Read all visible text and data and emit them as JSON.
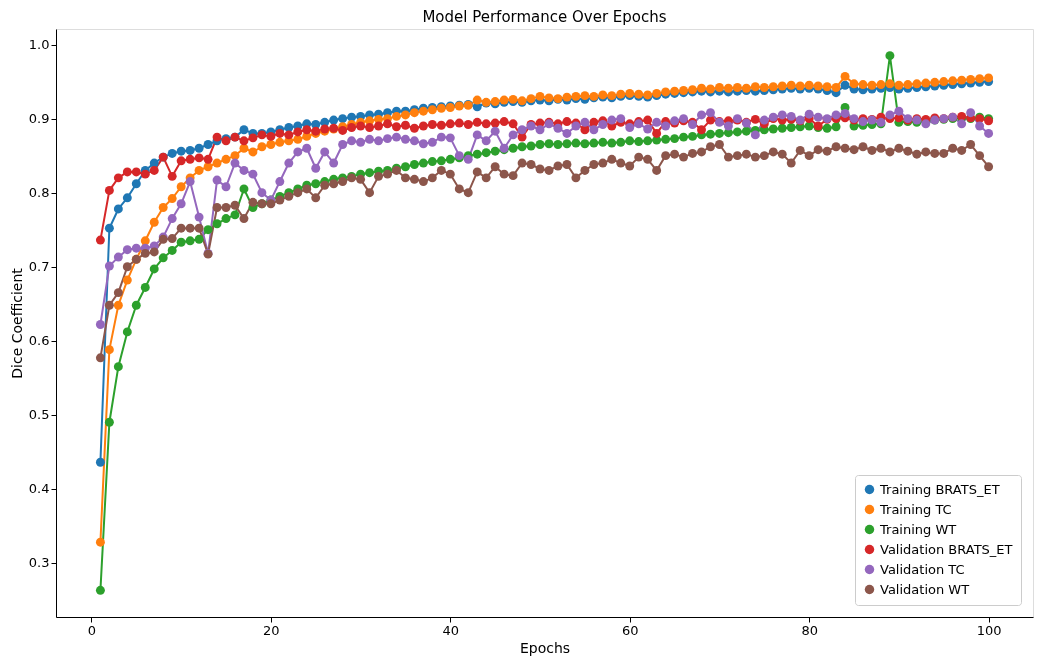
{
  "chart_data": {
    "type": "line",
    "title": "Model Performance Over Epochs",
    "xlabel": "Epochs",
    "ylabel": "Dice Coefficient",
    "x": [
      1,
      2,
      3,
      4,
      5,
      6,
      7,
      8,
      9,
      10,
      11,
      12,
      13,
      14,
      15,
      16,
      17,
      18,
      19,
      20,
      21,
      22,
      23,
      24,
      25,
      26,
      27,
      28,
      29,
      30,
      31,
      32,
      33,
      34,
      35,
      36,
      37,
      38,
      39,
      40,
      41,
      42,
      43,
      44,
      45,
      46,
      47,
      48,
      49,
      50,
      51,
      52,
      53,
      54,
      55,
      56,
      57,
      58,
      59,
      60,
      61,
      62,
      63,
      64,
      65,
      66,
      67,
      68,
      69,
      70,
      71,
      72,
      73,
      74,
      75,
      76,
      77,
      78,
      79,
      80,
      81,
      82,
      83,
      84,
      85,
      86,
      87,
      88,
      89,
      90,
      91,
      92,
      93,
      94,
      95,
      96,
      97,
      98,
      99,
      100
    ],
    "xlim": [
      -3.95,
      104.95
    ],
    "xticks": [
      0,
      20,
      40,
      60,
      80,
      100
    ],
    "ylim": [
      0.227,
      1.021
    ],
    "yticks": [
      0.3,
      0.4,
      0.5,
      0.6,
      0.7,
      0.8,
      0.9,
      {
        "value": 1.0,
        "label": "1.0"
      }
    ],
    "marker": "circle",
    "line_style": "solid",
    "legend": "bottom right",
    "grid": false,
    "series": [
      {
        "name": "Training BRATS_ET",
        "color": "#1f77b4",
        "values": [
          0.436,
          0.752,
          0.778,
          0.793,
          0.812,
          0.83,
          0.84,
          0.848,
          0.853,
          0.856,
          0.857,
          0.86,
          0.865,
          0.87,
          0.873,
          0.875,
          0.885,
          0.88,
          0.88,
          0.882,
          0.885,
          0.888,
          0.89,
          0.893,
          0.892,
          0.895,
          0.898,
          0.9,
          0.902,
          0.903,
          0.905,
          0.906,
          0.908,
          0.91,
          0.91,
          0.912,
          0.914,
          0.915,
          0.916,
          0.917,
          0.918,
          0.919,
          0.916,
          0.921,
          0.92,
          0.922,
          0.923,
          0.922,
          0.924,
          0.925,
          0.924,
          0.926,
          0.925,
          0.927,
          0.926,
          0.928,
          0.929,
          0.928,
          0.93,
          0.931,
          0.93,
          0.929,
          0.931,
          0.933,
          0.934,
          0.935,
          0.936,
          0.937,
          0.936,
          0.937,
          0.936,
          0.937,
          0.938,
          0.937,
          0.938,
          0.939,
          0.94,
          0.941,
          0.94,
          0.941,
          0.94,
          0.938,
          0.935,
          0.945,
          0.94,
          0.939,
          0.94,
          0.941,
          0.942,
          0.94,
          0.941,
          0.942,
          0.943,
          0.944,
          0.945,
          0.946,
          0.947,
          0.948,
          0.949,
          0.95
        ]
      },
      {
        "name": "Training TC",
        "color": "#ff7f0e",
        "values": [
          0.328,
          0.588,
          0.648,
          0.682,
          0.71,
          0.735,
          0.76,
          0.78,
          0.792,
          0.808,
          0.82,
          0.83,
          0.835,
          0.84,
          0.845,
          0.85,
          0.86,
          0.855,
          0.862,
          0.865,
          0.868,
          0.87,
          0.872,
          0.876,
          0.88,
          0.883,
          0.886,
          0.889,
          0.892,
          0.895,
          0.897,
          0.899,
          0.9,
          0.903,
          0.905,
          0.908,
          0.91,
          0.912,
          0.914,
          0.915,
          0.917,
          0.918,
          0.925,
          0.922,
          0.923,
          0.925,
          0.926,
          0.924,
          0.927,
          0.93,
          0.928,
          0.927,
          0.929,
          0.93,
          0.931,
          0.93,
          0.932,
          0.931,
          0.933,
          0.934,
          0.933,
          0.932,
          0.934,
          0.936,
          0.937,
          0.938,
          0.939,
          0.941,
          0.94,
          0.942,
          0.941,
          0.942,
          0.941,
          0.943,
          0.942,
          0.943,
          0.944,
          0.945,
          0.944,
          0.945,
          0.944,
          0.943,
          0.942,
          0.957,
          0.947,
          0.946,
          0.945,
          0.946,
          0.947,
          0.945,
          0.946,
          0.947,
          0.948,
          0.949,
          0.95,
          0.951,
          0.952,
          0.953,
          0.954,
          0.955
        ]
      },
      {
        "name": "Training WT",
        "color": "#2ca02c",
        "values": [
          0.263,
          0.49,
          0.565,
          0.612,
          0.648,
          0.672,
          0.697,
          0.712,
          0.722,
          0.733,
          0.735,
          0.737,
          0.75,
          0.758,
          0.765,
          0.77,
          0.805,
          0.78,
          0.785,
          0.79,
          0.795,
          0.8,
          0.805,
          0.81,
          0.812,
          0.815,
          0.818,
          0.82,
          0.822,
          0.825,
          0.827,
          0.829,
          0.83,
          0.833,
          0.835,
          0.838,
          0.84,
          0.842,
          0.843,
          0.845,
          0.847,
          0.85,
          0.852,
          0.854,
          0.856,
          0.858,
          0.86,
          0.862,
          0.863,
          0.865,
          0.866,
          0.865,
          0.866,
          0.867,
          0.866,
          0.867,
          0.868,
          0.867,
          0.868,
          0.87,
          0.869,
          0.87,
          0.871,
          0.872,
          0.873,
          0.875,
          0.876,
          0.878,
          0.879,
          0.88,
          0.881,
          0.882,
          0.883,
          0.884,
          0.885,
          0.886,
          0.887,
          0.888,
          0.889,
          0.89,
          0.888,
          0.887,
          0.889,
          0.915,
          0.89,
          0.891,
          0.892,
          0.893,
          0.985,
          0.895,
          0.896,
          0.895,
          0.897,
          0.898,
          0.899,
          0.9,
          0.901,
          0.9,
          0.902,
          0.9
        ]
      },
      {
        "name": "Validation BRATS_ET",
        "color": "#d62728",
        "values": [
          0.736,
          0.803,
          0.82,
          0.828,
          0.828,
          0.825,
          0.83,
          0.848,
          0.822,
          0.843,
          0.845,
          0.847,
          0.845,
          0.875,
          0.87,
          0.875,
          0.87,
          0.874,
          0.878,
          0.876,
          0.88,
          0.878,
          0.882,
          0.885,
          0.883,
          0.886,
          0.887,
          0.884,
          0.888,
          0.89,
          0.888,
          0.89,
          0.893,
          0.889,
          0.891,
          0.887,
          0.89,
          0.892,
          0.891,
          0.893,
          0.894,
          0.892,
          0.895,
          0.893,
          0.894,
          0.896,
          0.893,
          0.875,
          0.892,
          0.894,
          0.895,
          0.893,
          0.896,
          0.894,
          0.885,
          0.895,
          0.897,
          0.89,
          0.895,
          0.893,
          0.896,
          0.898,
          0.88,
          0.896,
          0.894,
          0.897,
          0.895,
          0.885,
          0.898,
          0.896,
          0.897,
          0.898,
          0.895,
          0.899,
          0.893,
          0.9,
          0.898,
          0.899,
          0.897,
          0.9,
          0.89,
          0.899,
          0.9,
          0.901,
          0.898,
          0.9,
          0.899,
          0.902,
          0.9,
          0.901,
          0.898,
          0.9,
          0.899,
          0.901,
          0.9,
          0.902,
          0.903,
          0.901,
          0.9,
          0.897
        ]
      },
      {
        "name": "Validation TC",
        "color": "#9467bd",
        "values": [
          0.622,
          0.701,
          0.713,
          0.723,
          0.725,
          0.725,
          0.728,
          0.74,
          0.765,
          0.785,
          0.815,
          0.767,
          0.718,
          0.817,
          0.808,
          0.84,
          0.83,
          0.825,
          0.8,
          0.79,
          0.815,
          0.84,
          0.855,
          0.86,
          0.833,
          0.855,
          0.84,
          0.865,
          0.87,
          0.868,
          0.872,
          0.87,
          0.873,
          0.875,
          0.872,
          0.87,
          0.866,
          0.868,
          0.875,
          0.874,
          0.85,
          0.845,
          0.878,
          0.87,
          0.883,
          0.86,
          0.878,
          0.885,
          0.89,
          0.885,
          0.893,
          0.887,
          0.88,
          0.89,
          0.895,
          0.885,
          0.892,
          0.898,
          0.9,
          0.888,
          0.893,
          0.886,
          0.895,
          0.89,
          0.897,
          0.9,
          0.892,
          0.905,
          0.908,
          0.895,
          0.89,
          0.9,
          0.894,
          0.878,
          0.898,
          0.902,
          0.905,
          0.903,
          0.898,
          0.906,
          0.902,
          0.9,
          0.905,
          0.907,
          0.9,
          0.896,
          0.898,
          0.895,
          0.905,
          0.91,
          0.9,
          0.898,
          0.893,
          0.898,
          0.9,
          0.902,
          0.893,
          0.908,
          0.89,
          0.88
        ]
      },
      {
        "name": "Validation WT",
        "color": "#8c564b",
        "values": [
          0.577,
          0.648,
          0.665,
          0.7,
          0.71,
          0.718,
          0.72,
          0.737,
          0.738,
          0.752,
          0.752,
          0.752,
          0.717,
          0.78,
          0.78,
          0.783,
          0.765,
          0.787,
          0.785,
          0.785,
          0.79,
          0.795,
          0.8,
          0.805,
          0.793,
          0.81,
          0.812,
          0.815,
          0.82,
          0.818,
          0.8,
          0.822,
          0.825,
          0.83,
          0.82,
          0.818,
          0.815,
          0.82,
          0.83,
          0.825,
          0.805,
          0.8,
          0.828,
          0.82,
          0.835,
          0.825,
          0.823,
          0.84,
          0.838,
          0.832,
          0.83,
          0.836,
          0.838,
          0.82,
          0.83,
          0.838,
          0.84,
          0.845,
          0.84,
          0.836,
          0.848,
          0.845,
          0.83,
          0.85,
          0.852,
          0.848,
          0.853,
          0.855,
          0.862,
          0.865,
          0.848,
          0.85,
          0.852,
          0.848,
          0.85,
          0.855,
          0.852,
          0.84,
          0.857,
          0.85,
          0.858,
          0.856,
          0.862,
          0.86,
          0.858,
          0.862,
          0.857,
          0.86,
          0.855,
          0.86,
          0.856,
          0.852,
          0.855,
          0.853,
          0.853,
          0.86,
          0.857,
          0.865,
          0.85,
          0.835
        ]
      }
    ]
  }
}
